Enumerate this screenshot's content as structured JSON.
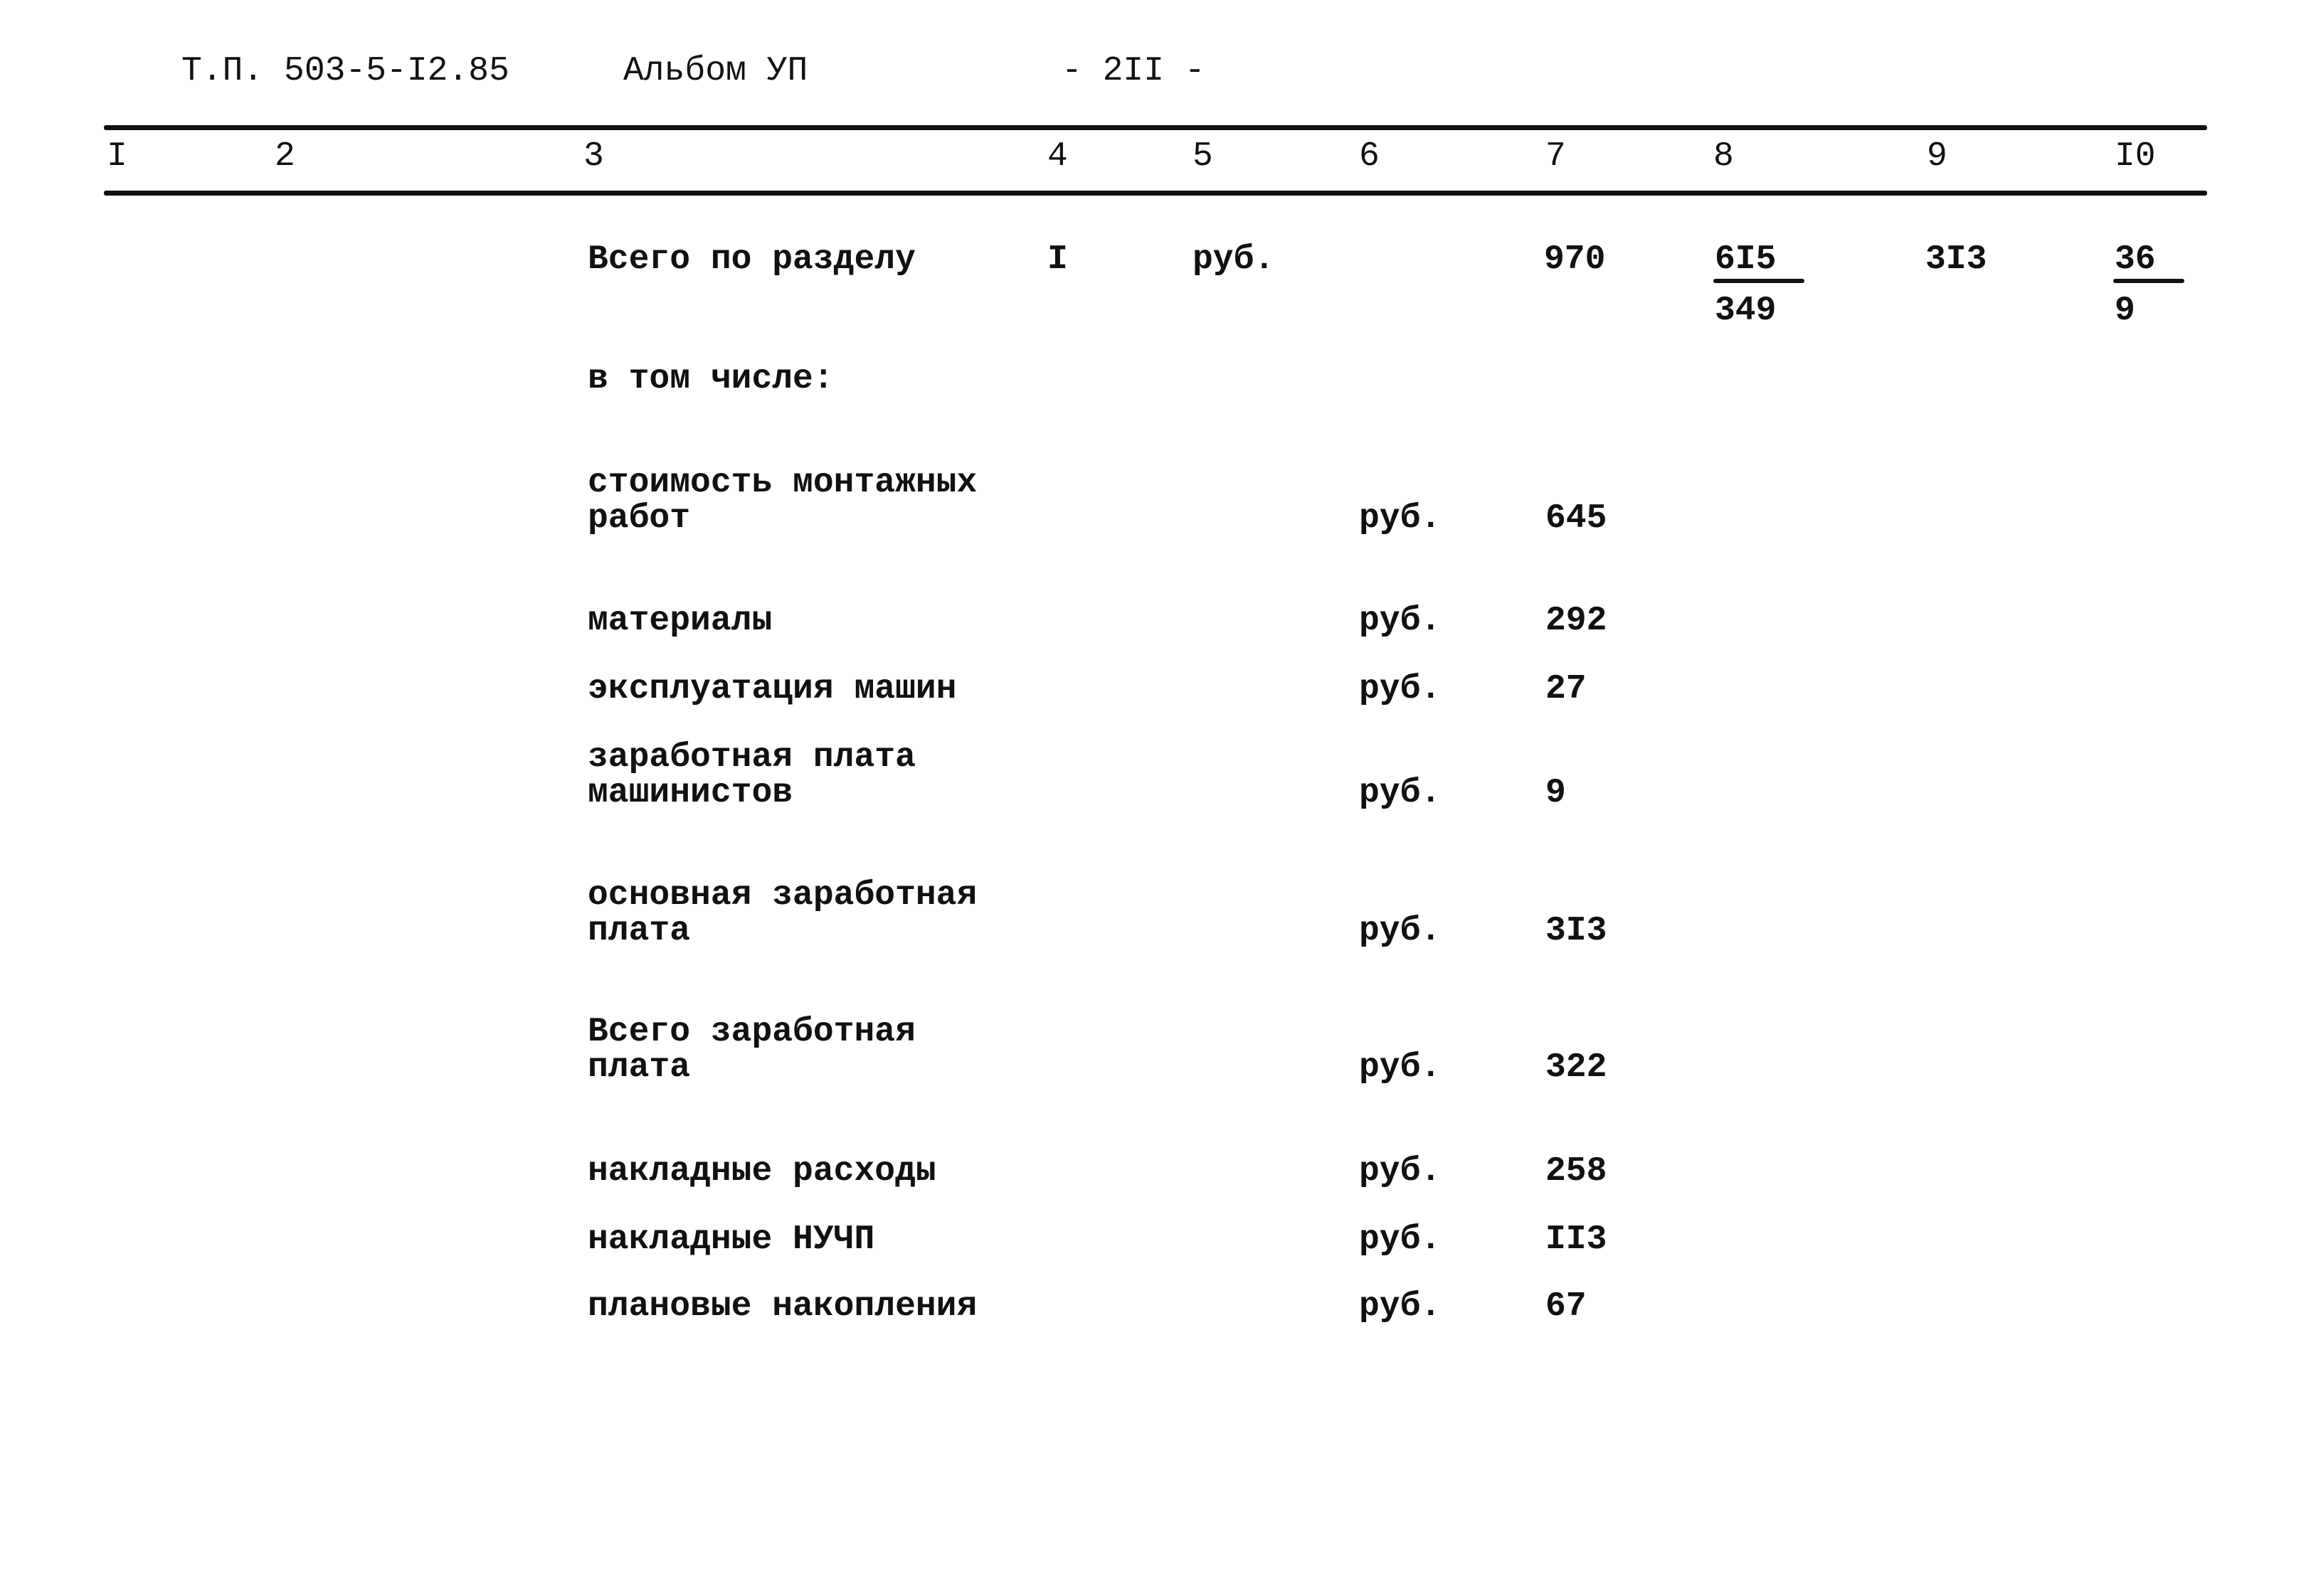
{
  "header": {
    "doc_code": "Т.П. 503-5-I2.85",
    "album": "Альбом УП",
    "page": "- 2II -"
  },
  "columns": [
    "I",
    "2",
    "3",
    "4",
    "5",
    "6",
    "7",
    "8",
    "9",
    "I0"
  ],
  "total_row": {
    "label": "Всего по разделу",
    "col4": "I",
    "col5": "руб.",
    "col7": "970",
    "col8_num": "6I5",
    "col8_den": "349",
    "col9": "3I3",
    "col10_num": "36",
    "col10_den": "9"
  },
  "including_label": "в том числе:",
  "items": [
    {
      "label_line1": "стоимость монтажных",
      "label_line2": "работ",
      "unit": "руб.",
      "value": "645"
    },
    {
      "label_line1": "материалы",
      "label_line2": "",
      "unit": "руб.",
      "value": "292"
    },
    {
      "label_line1": "эксплуатация машин",
      "label_line2": "",
      "unit": "руб.",
      "value": "27"
    },
    {
      "label_line1": "заработная плата",
      "label_line2": "машинистов",
      "unit": "руб.",
      "value": "9"
    },
    {
      "label_line1": "основная заработная",
      "label_line2": "плата",
      "unit": "руб.",
      "value": "3I3"
    },
    {
      "label_line1": "Всего заработная",
      "label_line2": "плата",
      "unit": "руб.",
      "value": "322"
    },
    {
      "label_line1": "накладные расходы",
      "label_line2": "",
      "unit": "руб.",
      "value": "258"
    },
    {
      "label_line1": "накладные НУЧП",
      "label_line2": "",
      "unit": "руб.",
      "value": "II3"
    },
    {
      "label_line1": "плановые накопления",
      "label_line2": "",
      "unit": "руб.",
      "value": "67"
    }
  ]
}
